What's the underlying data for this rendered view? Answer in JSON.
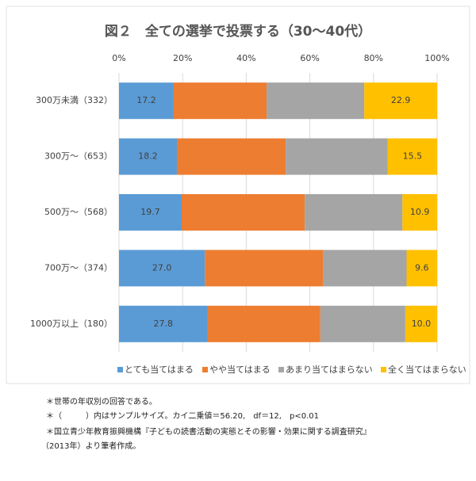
{
  "chart_data": {
    "type": "stacked-bar-horizontal",
    "title": "図２　全ての選挙で投票する（30～40代）",
    "categories": [
      "300万未満（332）",
      "300万～（653）",
      "500万～（568）",
      "700万～（374）",
      "1000万以上（180）"
    ],
    "series": [
      {
        "name": "とても当てはまる",
        "color": "#5b9bd5",
        "values": [
          17.2,
          18.2,
          19.7,
          27.0,
          27.8
        ],
        "value_labels": [
          "17.2",
          "18.2",
          "19.7",
          "27.0",
          "27.8"
        ]
      },
      {
        "name": "やや当てはまる",
        "color": "#ed7d31",
        "values": [
          29.2,
          34.2,
          38.7,
          37.1,
          35.5
        ]
      },
      {
        "name": "あまり当てはまらない",
        "color": "#a5a5a5",
        "values": [
          30.7,
          32.1,
          30.7,
          26.3,
          26.7
        ]
      },
      {
        "name": "全く当てはまらない",
        "color": "#ffc000",
        "values": [
          22.9,
          15.5,
          10.9,
          9.6,
          10.0
        ],
        "value_labels": [
          "22.9",
          "15.5",
          "10.9",
          "9.6",
          "10.0"
        ]
      }
    ],
    "xlim": [
      0,
      100
    ],
    "xticks": [
      {
        "value": 0,
        "label": "0%"
      },
      {
        "value": 20,
        "label": "20%"
      },
      {
        "value": 40,
        "label": "40%"
      },
      {
        "value": 60,
        "label": "60%"
      },
      {
        "value": 80,
        "label": "80%"
      },
      {
        "value": 100,
        "label": "100%"
      }
    ],
    "grid": true,
    "legend": "bottom",
    "notes": [
      "＊世帯の年収別の回答である。",
      "＊（　　　）内はサンプルサイズ。カイ二乗値＝56.20,　df＝12,　p<0.01",
      "＊国立青少年教育振興機構『子どもの読書活動の実態とその影響・効果に関する調査研究』",
      "（2013年）より筆者作成。"
    ]
  }
}
